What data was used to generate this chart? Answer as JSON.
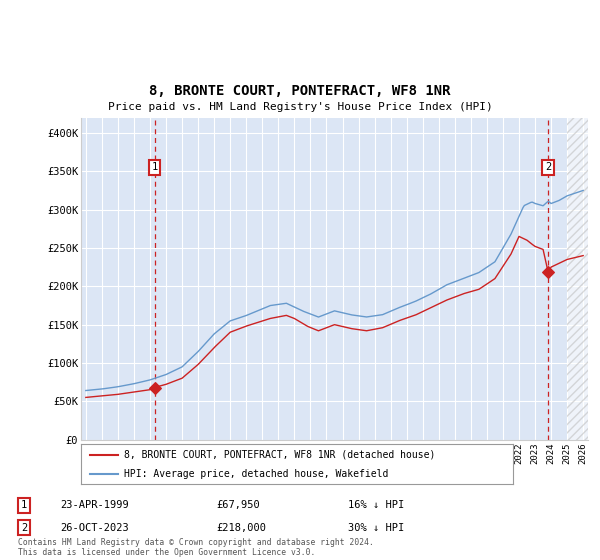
{
  "title": "8, BRONTE COURT, PONTEFRACT, WF8 1NR",
  "subtitle": "Price paid vs. HM Land Registry's House Price Index (HPI)",
  "footnote": "Contains HM Land Registry data © Crown copyright and database right 2024.\nThis data is licensed under the Open Government Licence v3.0.",
  "legend_line1": "8, BRONTE COURT, PONTEFRACT, WF8 1NR (detached house)",
  "legend_line2": "HPI: Average price, detached house, Wakefield",
  "marker1_label": "1",
  "marker1_date": "23-APR-1999",
  "marker1_price": "£67,950",
  "marker1_hpi": "16% ↓ HPI",
  "marker1_year": 1999.29,
  "marker1_value": 67950,
  "marker2_label": "2",
  "marker2_date": "26-OCT-2023",
  "marker2_price": "£218,000",
  "marker2_hpi": "30% ↓ HPI",
  "marker2_year": 2023.82,
  "marker2_value": 218000,
  "hpi_color": "#6699cc",
  "price_color": "#cc2222",
  "marker_color": "#cc2222",
  "bg_color": "#dce6f5",
  "grid_color": "#ffffff",
  "ylim": [
    0,
    420000
  ],
  "xlim_start": 1994.7,
  "xlim_end": 2026.3,
  "hatch_start": 2025.0
}
